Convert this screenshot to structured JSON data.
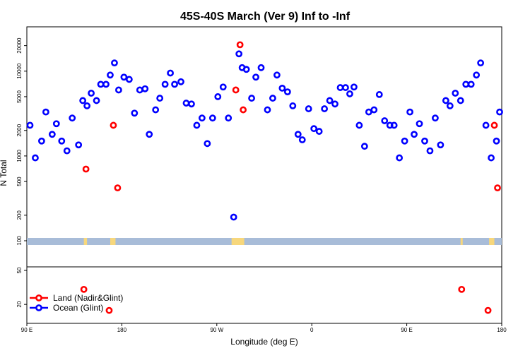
{
  "chart_data": {
    "type": "scatter",
    "title": "45S-40S March (Ver 9)   Inf to -Inf",
    "xlabel": "Longitude (deg E)",
    "ylabel": "N Total",
    "x_ticks": [
      {
        "x": 90,
        "label": "90 E"
      },
      {
        "x": 180,
        "label": "180"
      },
      {
        "x": 270,
        "label": "90 W"
      },
      {
        "x": 360,
        "label": "0"
      },
      {
        "x": 450,
        "label": "90 E"
      },
      {
        "x": 540,
        "label": "180"
      }
    ],
    "xlim": [
      90,
      540
    ],
    "upper_panel": {
      "scale": "log",
      "ylim": [
        100,
        25000
      ],
      "y_ticks": [
        100,
        200,
        500,
        1000,
        2000,
        5000,
        10000,
        20000
      ]
    },
    "lower_panel": {
      "scale": "log",
      "ylim": [
        12,
        55
      ],
      "y_ticks": [
        20,
        50
      ]
    },
    "colors": {
      "land": "#ff0000",
      "ocean": "#0000ff",
      "ocean_band": "#a8bcd8",
      "land_band": "#f7d77c"
    },
    "series": [
      {
        "name": "Land (Nadir&Glint)",
        "color": "#ff0000",
        "panel": "upper",
        "x": [
          146,
          172,
          176,
          288,
          292,
          295,
          533,
          536
        ],
        "y": [
          700,
          2300,
          420,
          6000,
          20500,
          3500,
          2300,
          420
        ]
      },
      {
        "name": "Land (Nadir&Glint) lower",
        "color": "#ff0000",
        "panel": "lower",
        "x": [
          144,
          168,
          502,
          527
        ],
        "y": [
          30,
          17,
          30,
          17
        ]
      },
      {
        "name": "Ocean (Glint)",
        "color": "#0000ff",
        "panel": "upper",
        "x": [
          93,
          98,
          104,
          108,
          114,
          118,
          123,
          128,
          133,
          139,
          143,
          147,
          151,
          156,
          160,
          165,
          169,
          173,
          177,
          182,
          187,
          192,
          197,
          202,
          206,
          212,
          216,
          221,
          226,
          230,
          236,
          241,
          246,
          251,
          256,
          261,
          266,
          271,
          276,
          281,
          286,
          291,
          294,
          298,
          303,
          307,
          312,
          318,
          323,
          327,
          332,
          337,
          342,
          347,
          351,
          357,
          362,
          367,
          372,
          377,
          382,
          387,
          392,
          396,
          400,
          405,
          410,
          414,
          419,
          424,
          429,
          434,
          438,
          443,
          448,
          453,
          457,
          462,
          467,
          472,
          477,
          482,
          487,
          491,
          496,
          501,
          506,
          511,
          516,
          520,
          525,
          530,
          535,
          538
        ],
        "y": [
          2300,
          950,
          1500,
          3300,
          1800,
          2400,
          1500,
          1150,
          2800,
          1350,
          4500,
          3900,
          5500,
          4500,
          7000,
          7000,
          9000,
          12500,
          6000,
          8500,
          8000,
          3200,
          6000,
          6200,
          1800,
          3500,
          4800,
          7000,
          9500,
          7000,
          7500,
          4200,
          4100,
          2300,
          2800,
          1400,
          2800,
          5000,
          6500,
          2800,
          190,
          16000,
          11000,
          10500,
          4800,
          8500,
          11000,
          3500,
          4800,
          9000,
          6300,
          5700,
          3900,
          1800,
          1550,
          3600,
          2100,
          1950,
          3600,
          4500,
          4100,
          6400,
          6400,
          5400,
          6500,
          2300,
          1300,
          3300,
          3500,
          5300,
          2600,
          2300,
          2300,
          950,
          1500,
          3300,
          1800,
          2400,
          1500,
          1150,
          2800,
          1350,
          4500,
          3900,
          5500,
          4500,
          7000,
          7000,
          9000,
          12500,
          2300,
          950,
          1500,
          3300
        ]
      }
    ],
    "legend": {
      "position": "bottom-left",
      "entries": [
        {
          "label": "Land (Nadir&Glint)",
          "color": "#ff0000"
        },
        {
          "label": "Ocean (Glint)",
          "color": "#0000ff"
        }
      ]
    },
    "land_band_segments": [
      [
        144,
        147
      ],
      [
        169,
        174
      ],
      [
        284,
        296
      ],
      [
        501,
        503
      ],
      [
        528,
        533
      ]
    ]
  }
}
